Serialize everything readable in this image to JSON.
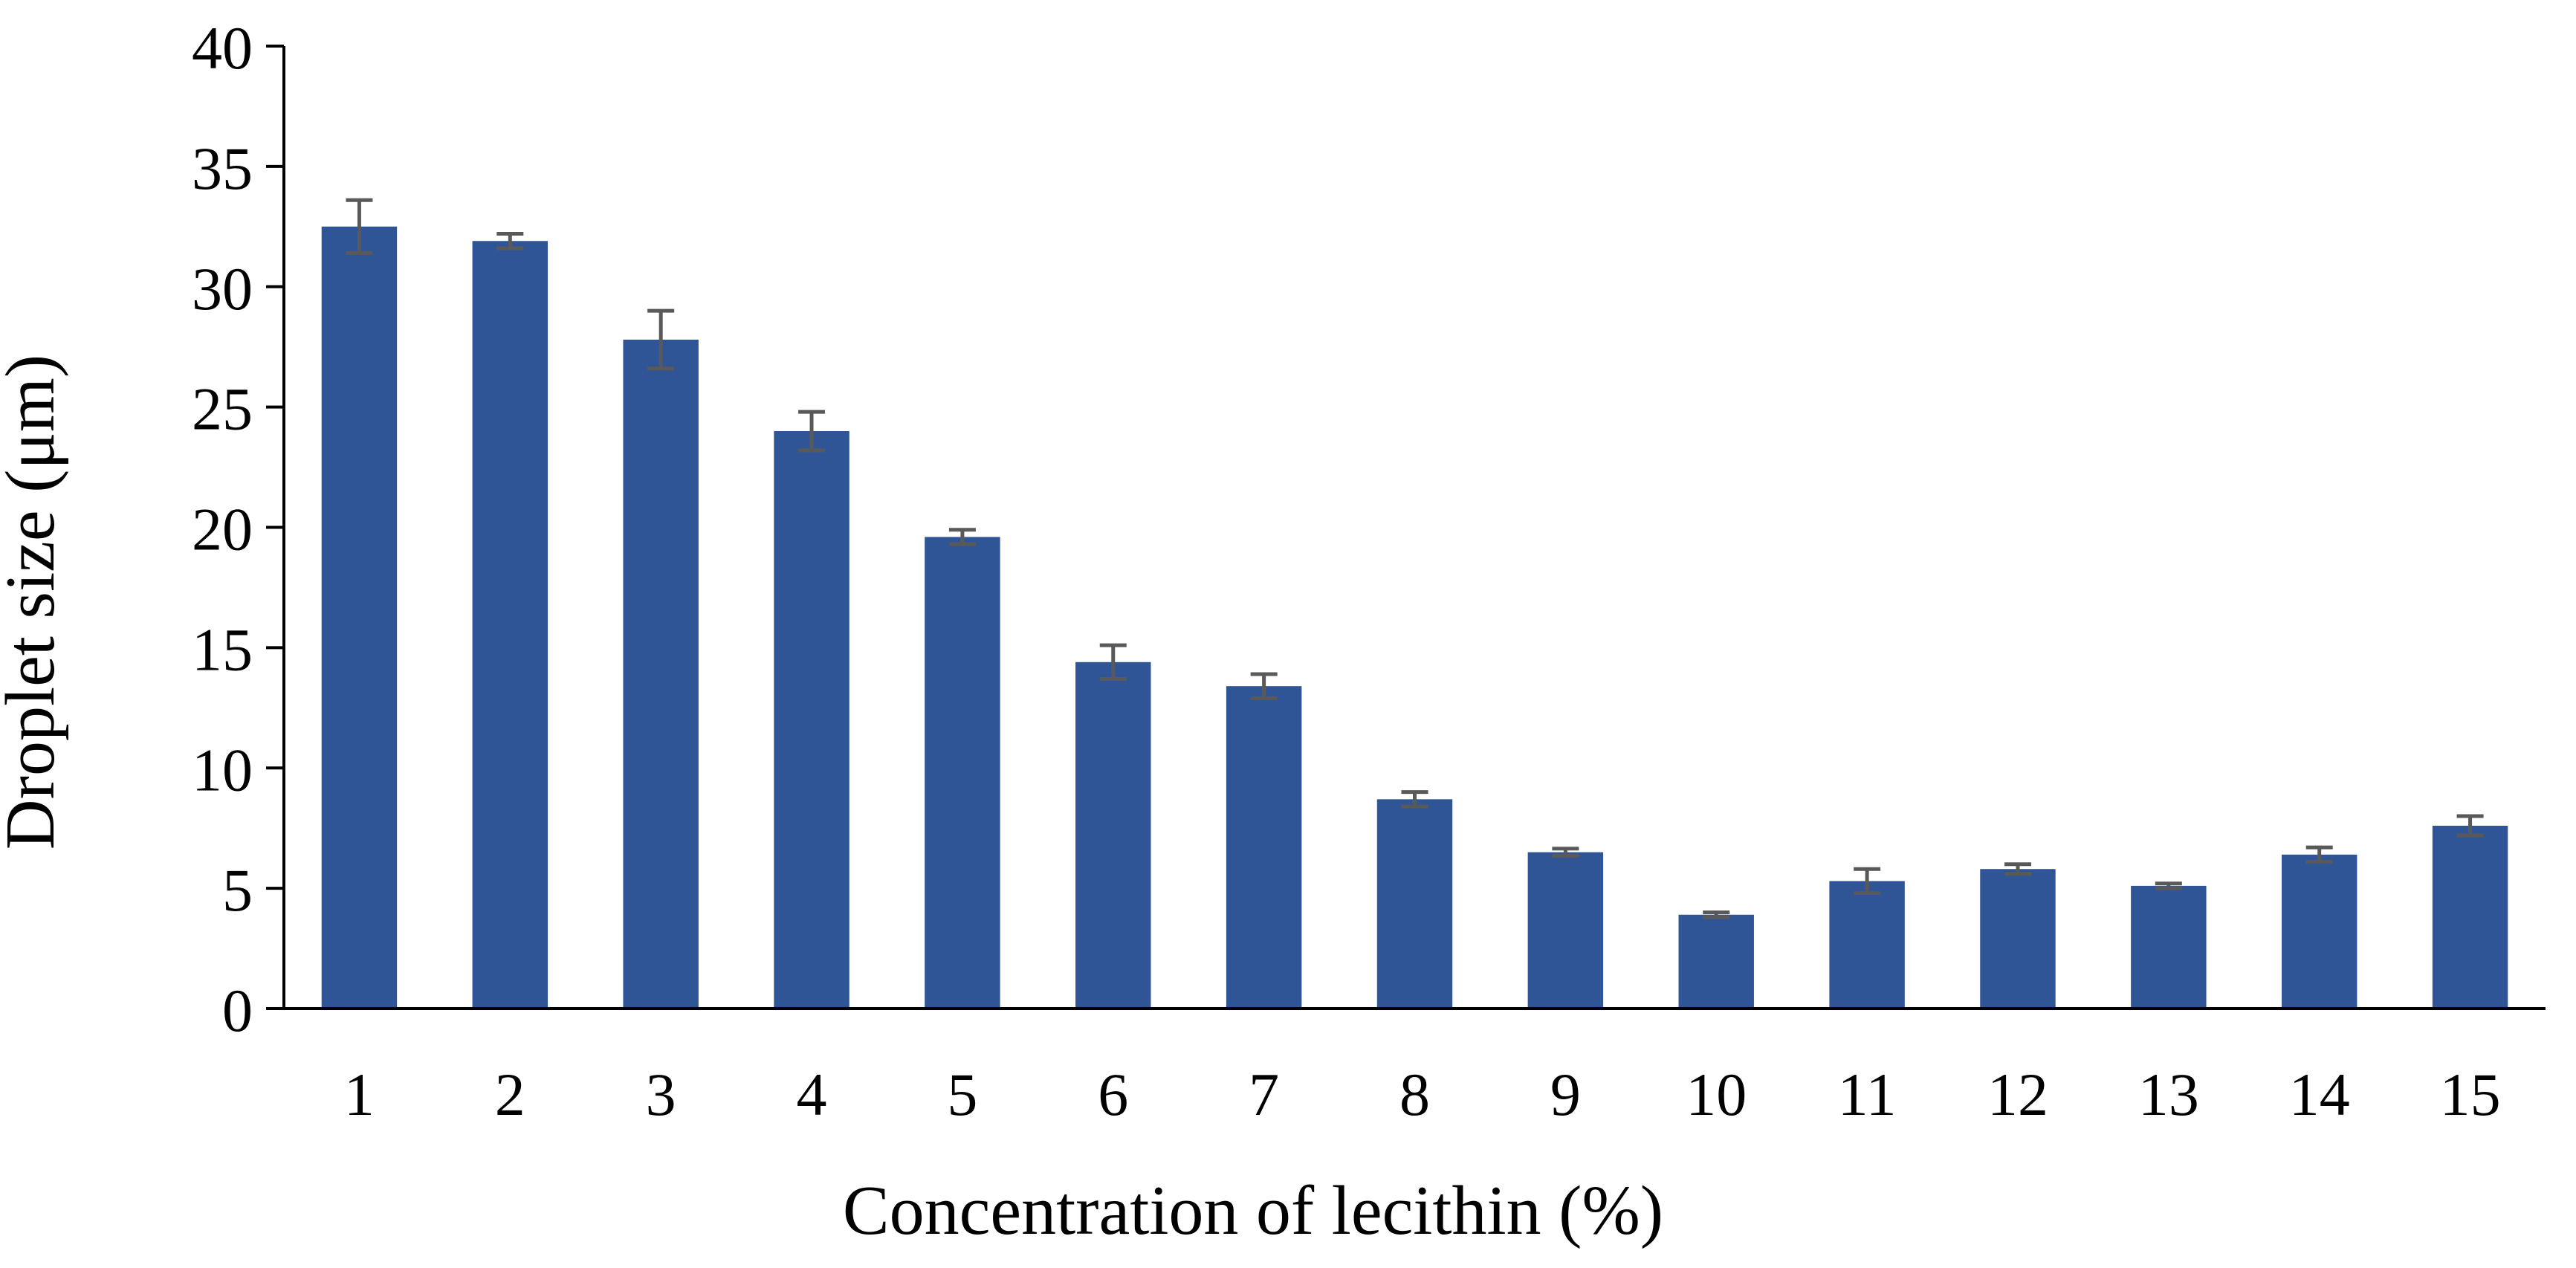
{
  "chart_data": {
    "type": "bar",
    "title": "",
    "xlabel": "Concentration of lecithin (%)",
    "ylabel": "Droplet size (μm)",
    "ylim": [
      0,
      40
    ],
    "yticks": [
      "0",
      "5",
      "10",
      "15",
      "20",
      "25",
      "30",
      "35",
      "40"
    ],
    "categories": [
      "1",
      "2",
      "3",
      "4",
      "5",
      "6",
      "7",
      "8",
      "9",
      "10",
      "11",
      "12",
      "13",
      "14",
      "15"
    ],
    "values": [
      32.5,
      31.9,
      27.8,
      24.0,
      19.6,
      14.4,
      13.4,
      8.7,
      6.5,
      3.9,
      5.3,
      5.8,
      5.1,
      6.4,
      7.6
    ],
    "errors": [
      1.1,
      0.3,
      1.2,
      0.8,
      0.3,
      0.7,
      0.5,
      0.3,
      0.15,
      0.1,
      0.5,
      0.2,
      0.1,
      0.3,
      0.4
    ],
    "bar_color": "#2F5597",
    "error_bar_color": "#595959",
    "grid": false,
    "legend": "none"
  }
}
